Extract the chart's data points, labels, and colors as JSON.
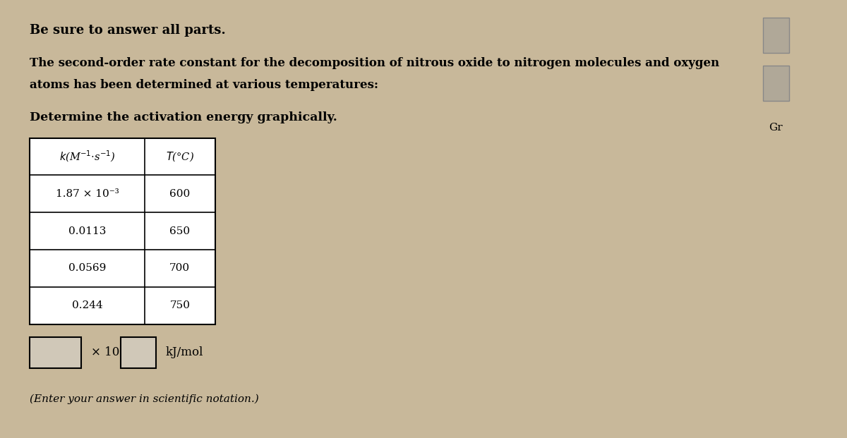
{
  "title_bold": "Be sure to answer all parts.",
  "paragraph1_bold": "The second-order rate constant for the decomposition of nitrous oxide to nitrogen molecules and oxygen",
  "paragraph1_normal": "atoms has been determined at various temperatures:",
  "paragraph2_bold": "Determine the activation energy graphically.",
  "table_header": [
    "k(M⁻¹·s⁻¹)",
    "T(°C)"
  ],
  "table_data": [
    [
      "1.87 × 10⁻³",
      "600"
    ],
    [
      "0.0113",
      "650"
    ],
    [
      "0.0569",
      "700"
    ],
    [
      "0.244",
      "750"
    ]
  ],
  "answer_text": "× 10",
  "answer_unit": "kJ/mol",
  "note_text": "(Enter your answer in scientific notation.)",
  "background_color": "#c8b89a",
  "table_bg": "#ffffff",
  "table_border": "#000000",
  "text_color": "#000000",
  "sidebar_color": "#a09080",
  "sidebar_label": "Gr"
}
